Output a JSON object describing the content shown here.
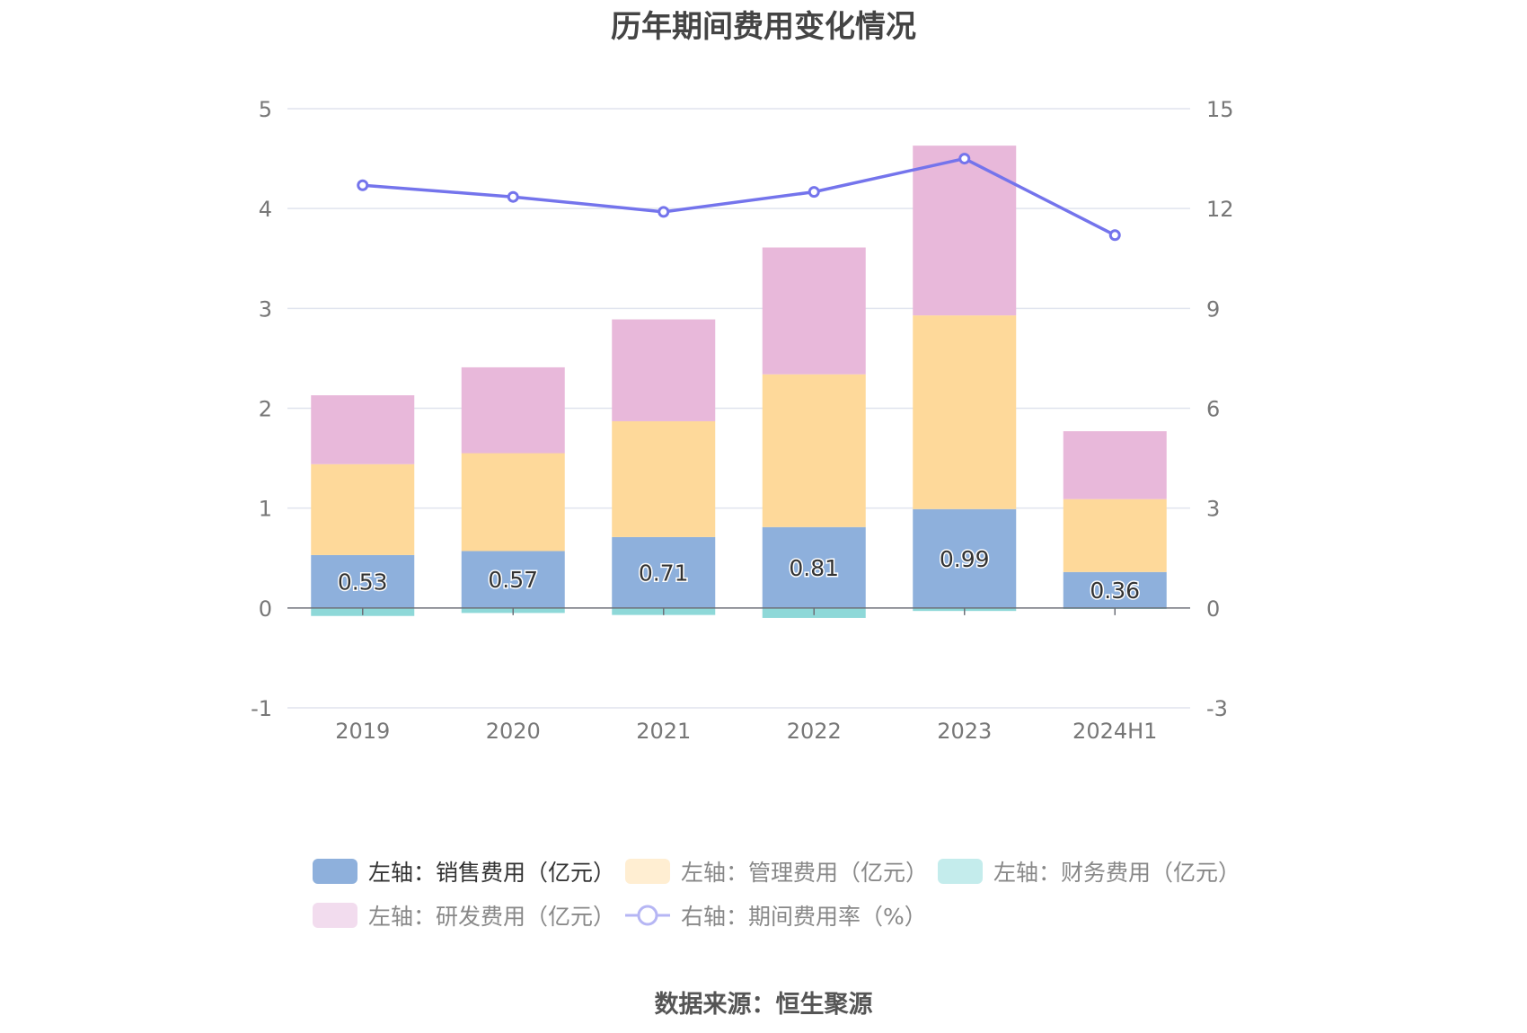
{
  "title": "历年期间费用变化情况",
  "source": "数据来源：恒生聚源",
  "legend": {
    "sales": "左轴：销售费用（亿元）",
    "admin": "左轴：管理费用（亿元）",
    "finance": "左轴：财务费用（亿元）",
    "rnd": "左轴：研发费用（亿元）",
    "rate": "右轴：期间费用率（%）"
  },
  "colors": {
    "sales": "#8eb0dc",
    "admin": "#fed99a",
    "finance": "#8ed8d8",
    "rnd": "#e8b8da",
    "rate": "#7474ec",
    "legend_finance": "#c4ecec",
    "legend_rnd": "#f2dcee",
    "legend_admin": "#ffeed2",
    "legend_rate": "#b6b6f4"
  },
  "chart_data": {
    "type": "bar",
    "categories": [
      "2019",
      "2020",
      "2021",
      "2022",
      "2023",
      "2024H1"
    ],
    "series": [
      {
        "name": "左轴：销售费用（亿元）",
        "key": "sales",
        "type": "bar",
        "axis": "left",
        "values": [
          0.53,
          0.57,
          0.71,
          0.81,
          0.99,
          0.36
        ],
        "labels": [
          "0.53",
          "0.57",
          "0.71",
          "0.81",
          "0.99",
          "0.36"
        ]
      },
      {
        "name": "左轴：管理费用（亿元）",
        "key": "admin",
        "type": "bar",
        "axis": "left",
        "values": [
          0.91,
          0.98,
          1.16,
          1.53,
          1.94,
          0.73
        ]
      },
      {
        "name": "左轴：财务费用（亿元）",
        "key": "finance",
        "type": "bar",
        "axis": "left",
        "values": [
          -0.08,
          -0.05,
          -0.07,
          -0.1,
          -0.03,
          -0.01
        ]
      },
      {
        "name": "左轴：研发费用（亿元）",
        "key": "rnd",
        "type": "bar",
        "axis": "left",
        "values": [
          0.69,
          0.86,
          1.02,
          1.27,
          1.7,
          0.68
        ]
      },
      {
        "name": "右轴：期间费用率（%）",
        "key": "rate",
        "type": "line",
        "axis": "right",
        "values": [
          12.7,
          12.35,
          11.9,
          12.5,
          13.5,
          11.2
        ]
      }
    ],
    "left_axis": {
      "ylim": [
        -1,
        5
      ],
      "ticks": [
        "-1",
        "0",
        "1",
        "2",
        "3",
        "4",
        "5"
      ]
    },
    "right_axis": {
      "ylim": [
        -3,
        15
      ],
      "ticks": [
        "-3",
        "0",
        "3",
        "6",
        "9",
        "12",
        "15"
      ]
    },
    "grid": true,
    "legend_position": "bottom"
  }
}
